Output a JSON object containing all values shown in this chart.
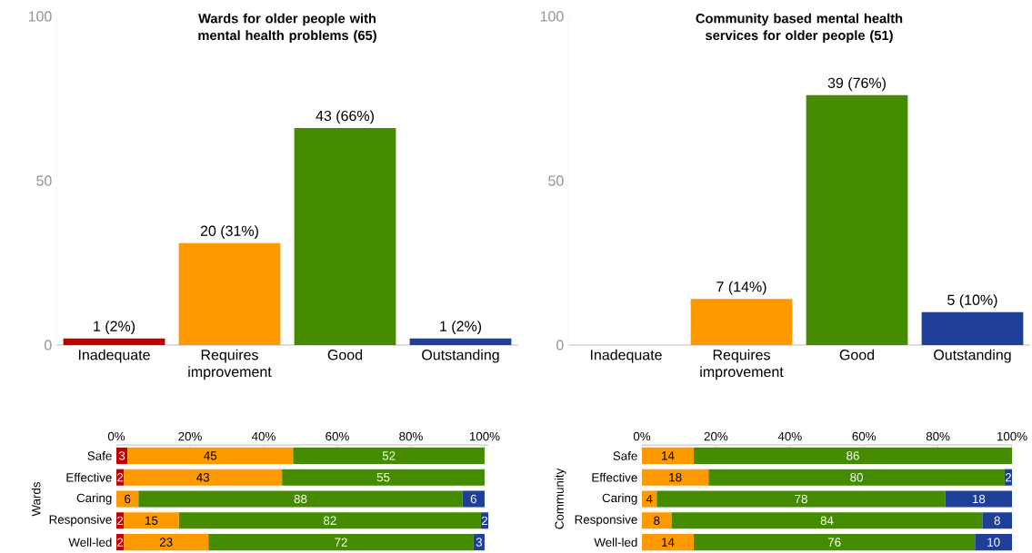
{
  "chart_data": [
    {
      "type": "bar",
      "title": "Wards for older people with mental health problems (65)",
      "categories": [
        "Inadequate",
        "Requires improvement",
        "Good",
        "Outstanding"
      ],
      "values": [
        2,
        31,
        66,
        2
      ],
      "colors": [
        "#c00000",
        "#ff9900",
        "#458b00",
        "#1f3f99"
      ],
      "value_labels": [
        "1 (2%)",
        "20 (31%)",
        "43 (66%)",
        "1 (2%)"
      ],
      "ylim": [
        0,
        100
      ],
      "yticks": [
        0,
        50,
        100
      ]
    },
    {
      "type": "bar",
      "title": "Community based mental health services for older people (51)",
      "categories": [
        "Inadequate",
        "Requires improvement",
        "Good",
        "Outstanding"
      ],
      "values": [
        0,
        14,
        76,
        10
      ],
      "colors": [
        "#c00000",
        "#ff9900",
        "#458b00",
        "#1f3f99"
      ],
      "value_labels": [
        null,
        "7 (14%)",
        "39 (76%)",
        "5 (10%)"
      ],
      "ylim": [
        0,
        100
      ],
      "yticks": [
        0,
        50,
        100
      ]
    },
    {
      "type": "bar",
      "orientation": "horizontal",
      "stacked": true,
      "ylabel": "Wards",
      "categories": [
        "Safe",
        "Effective",
        "Caring",
        "Responsive",
        "Well-led"
      ],
      "data_labels": true,
      "xlim": [
        0,
        101
      ],
      "xticks": [
        {
          "value": 0,
          "label": "0%"
        },
        {
          "value": 20,
          "label": "20%"
        },
        {
          "value": 40,
          "label": "40%"
        },
        {
          "value": 60,
          "label": "60%"
        },
        {
          "value": 80,
          "label": "80%"
        },
        {
          "value": 100,
          "label": "100%"
        }
      ],
      "series": [
        {
          "color": "#c00000",
          "values": [
            3,
            2,
            null,
            2,
            2
          ]
        },
        {
          "color": "#ff9900",
          "values": [
            45,
            43,
            6,
            15,
            23
          ]
        },
        {
          "color": "#458b00",
          "values": [
            52,
            55,
            88,
            82,
            72
          ]
        },
        {
          "color": "#1f3f99",
          "values": [
            null,
            null,
            6,
            2,
            3
          ]
        }
      ]
    },
    {
      "type": "bar",
      "orientation": "horizontal",
      "stacked": true,
      "ylabel": "Community",
      "categories": [
        "Safe",
        "Effective",
        "Caring",
        "Responsive",
        "Well-led"
      ],
      "data_labels": true,
      "xlim": [
        0,
        100
      ],
      "xticks": [
        {
          "value": 0,
          "label": "0%"
        },
        {
          "value": 20,
          "label": "20%"
        },
        {
          "value": 40,
          "label": "40%"
        },
        {
          "value": 60,
          "label": "60%"
        },
        {
          "value": 80,
          "label": "80%"
        },
        {
          "value": 100,
          "label": "100%"
        }
      ],
      "series": [
        {
          "color": "#ff9900",
          "values": [
            14,
            18,
            4,
            8,
            14
          ]
        },
        {
          "color": "#458b00",
          "values": [
            86,
            80,
            78,
            84,
            76
          ]
        },
        {
          "color": "#1f3f99",
          "values": [
            null,
            2,
            18,
            8,
            10
          ]
        }
      ]
    }
  ]
}
